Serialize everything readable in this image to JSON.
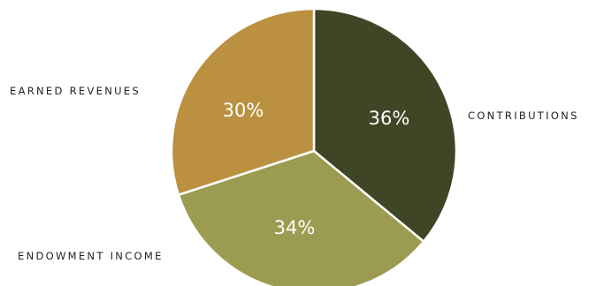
{
  "chart_data": {
    "type": "pie",
    "title": "",
    "slices": [
      {
        "label": "CONTRIBUTIONS",
        "value": 36,
        "value_label": "36%",
        "color": "#3f4626"
      },
      {
        "label": "ENDOWMENT INCOME",
        "value": 34,
        "value_label": "34%",
        "color": "#9b9b51"
      },
      {
        "label": "EARNED REVENUES",
        "value": 30,
        "value_label": "30%",
        "color": "#bb9141"
      }
    ],
    "start": "12 o'clock",
    "direction": "clockwise",
    "slice_border_color": "#ffffff"
  }
}
